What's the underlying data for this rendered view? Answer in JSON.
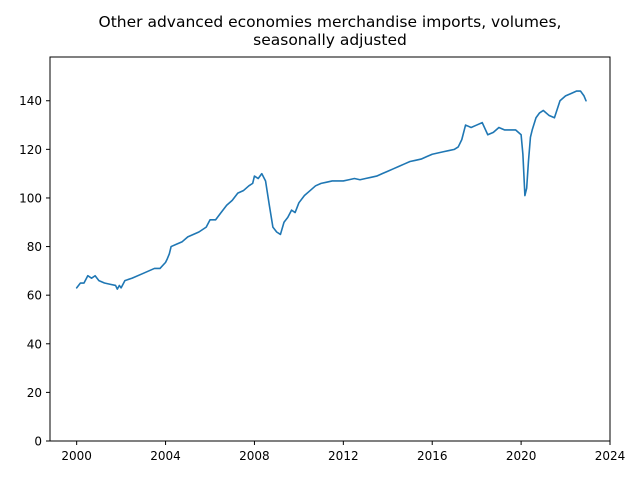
{
  "chart_data": {
    "type": "line",
    "title_line1": "Other advanced economies merchandise imports, volumes,",
    "title_line2": "seasonally adjusted",
    "xlabel": "",
    "ylabel": "",
    "xlim": [
      1998.8,
      2024.0
    ],
    "ylim": [
      0,
      158
    ],
    "x_ticks": [
      2000,
      2004,
      2008,
      2012,
      2016,
      2020,
      2024
    ],
    "y_ticks": [
      0,
      20,
      40,
      60,
      80,
      100,
      120,
      140
    ],
    "grid": false,
    "legend": "none",
    "color": "#1f77b4",
    "series": [
      {
        "x": [
          2000.0,
          2000.17,
          2000.33,
          2000.5,
          2000.67,
          2000.83,
          2001.0,
          2001.25,
          2001.5,
          2001.75,
          2001.83,
          2001.92,
          2002.0,
          2002.17,
          2002.5,
          2003.0,
          2003.5,
          2003.75,
          2004.0,
          2004.08,
          2004.17,
          2004.25,
          2004.5,
          2004.75,
          2005.0,
          2005.5,
          2005.83,
          2006.0,
          2006.25,
          2006.5,
          2006.75,
          2007.0,
          2007.25,
          2007.5,
          2007.75,
          2007.92,
          2008.0,
          2008.17,
          2008.33,
          2008.5,
          2008.67,
          2008.83,
          2009.0,
          2009.17,
          2009.33,
          2009.5,
          2009.67,
          2009.83,
          2010.0,
          2010.25,
          2010.5,
          2010.75,
          2011.0,
          2011.25,
          2011.5,
          2011.75,
          2012.0,
          2012.25,
          2012.5,
          2012.75,
          2013.0,
          2013.25,
          2013.5,
          2013.75,
          2014.0,
          2014.25,
          2014.5,
          2014.75,
          2015.0,
          2015.25,
          2015.5,
          2015.75,
          2016.0,
          2016.25,
          2016.5,
          2016.75,
          2017.0,
          2017.17,
          2017.33,
          2017.5,
          2017.75,
          2018.0,
          2018.25,
          2018.5,
          2018.75,
          2019.0,
          2019.25,
          2019.5,
          2019.75,
          2020.0,
          2020.08,
          2020.17,
          2020.25,
          2020.33,
          2020.42,
          2020.5,
          2020.67,
          2020.83,
          2021.0,
          2021.25,
          2021.5,
          2021.75,
          2022.0,
          2022.25,
          2022.5,
          2022.67,
          2022.83,
          2022.92
        ],
        "y": [
          63,
          65,
          65,
          68,
          67,
          68,
          66,
          65,
          64.5,
          64,
          62.5,
          64,
          63,
          66,
          67,
          69,
          71,
          71,
          73.5,
          75,
          77,
          80,
          81,
          82,
          84,
          86,
          88,
          91,
          91,
          94,
          97,
          99,
          102,
          103,
          105,
          106,
          109,
          108,
          110,
          107,
          97,
          88,
          86,
          85,
          90,
          92,
          95,
          94,
          98,
          101,
          103,
          105,
          106,
          106.5,
          107,
          107,
          107,
          107.5,
          108,
          107.5,
          108,
          108.5,
          109,
          110,
          111,
          112,
          113,
          114,
          115,
          115.5,
          116,
          117,
          118,
          118.5,
          119,
          119.5,
          120,
          121,
          124,
          130,
          129,
          130,
          131,
          126,
          127,
          129,
          128,
          128,
          128,
          126,
          118,
          101,
          104,
          115,
          125,
          128,
          133,
          135,
          136,
          134,
          133,
          140,
          142,
          143,
          144,
          144,
          142,
          140
        ]
      }
    ]
  }
}
